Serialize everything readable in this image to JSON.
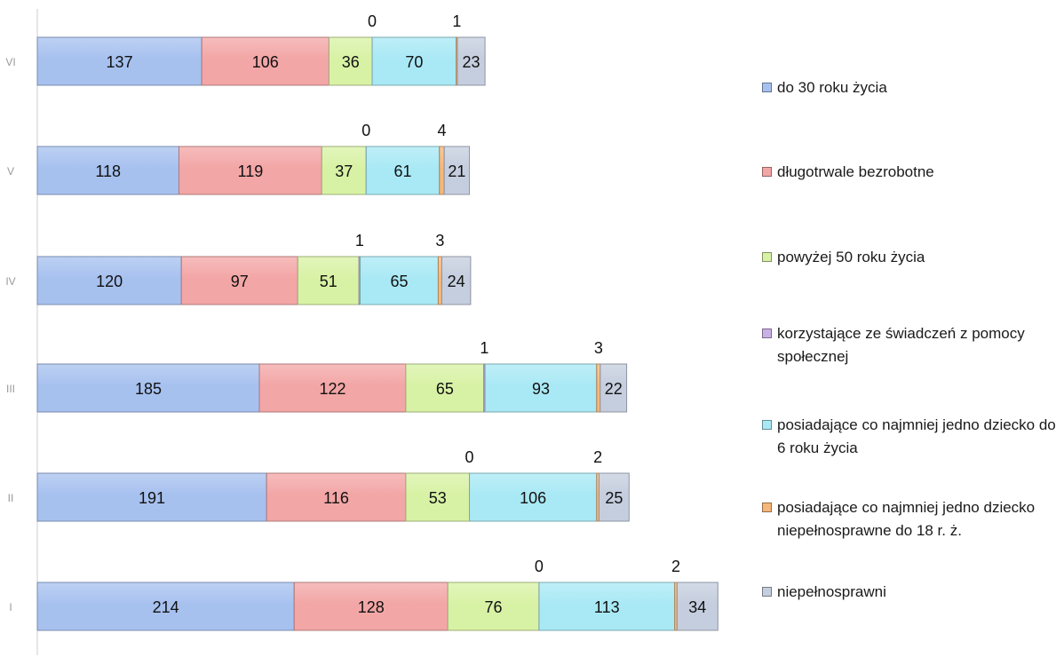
{
  "chart_data": {
    "type": "bar",
    "orientation": "horizontal",
    "stacked": true,
    "categories": [
      "VI",
      "V",
      "IV",
      "III",
      "II",
      "I"
    ],
    "series": [
      {
        "name": "do 30 roku życia",
        "color": "#a7c1ef",
        "values": [
          137,
          118,
          120,
          185,
          191,
          214
        ]
      },
      {
        "name": "długotrwale bezrobotne",
        "color": "#f3a6a6",
        "values": [
          106,
          119,
          97,
          122,
          116,
          128
        ]
      },
      {
        "name": "powyżej 50 roku życia",
        "color": "#d8f2a5",
        "values": [
          36,
          37,
          51,
          65,
          53,
          76
        ]
      },
      {
        "name": "korzystające ze świadczeń z pomocy społecznej",
        "color": "#c9b0e6",
        "values": [
          0,
          0,
          1,
          1,
          0,
          0
        ]
      },
      {
        "name": "posiadające co najmniej jedno dziecko do 6 roku życia",
        "color": "#a9e9f5",
        "values": [
          70,
          61,
          65,
          93,
          106,
          113
        ]
      },
      {
        "name": "posiadające co najmniej jedno dziecko niepełnosprawne do 18 r. ż.",
        "color": "#f5b77a",
        "values": [
          1,
          4,
          3,
          3,
          2,
          2
        ]
      },
      {
        "name": "niepełnosprawni",
        "color": "#c5cede",
        "values": [
          23,
          21,
          24,
          22,
          25,
          34
        ]
      }
    ],
    "legend_position": "right",
    "grid": false
  }
}
